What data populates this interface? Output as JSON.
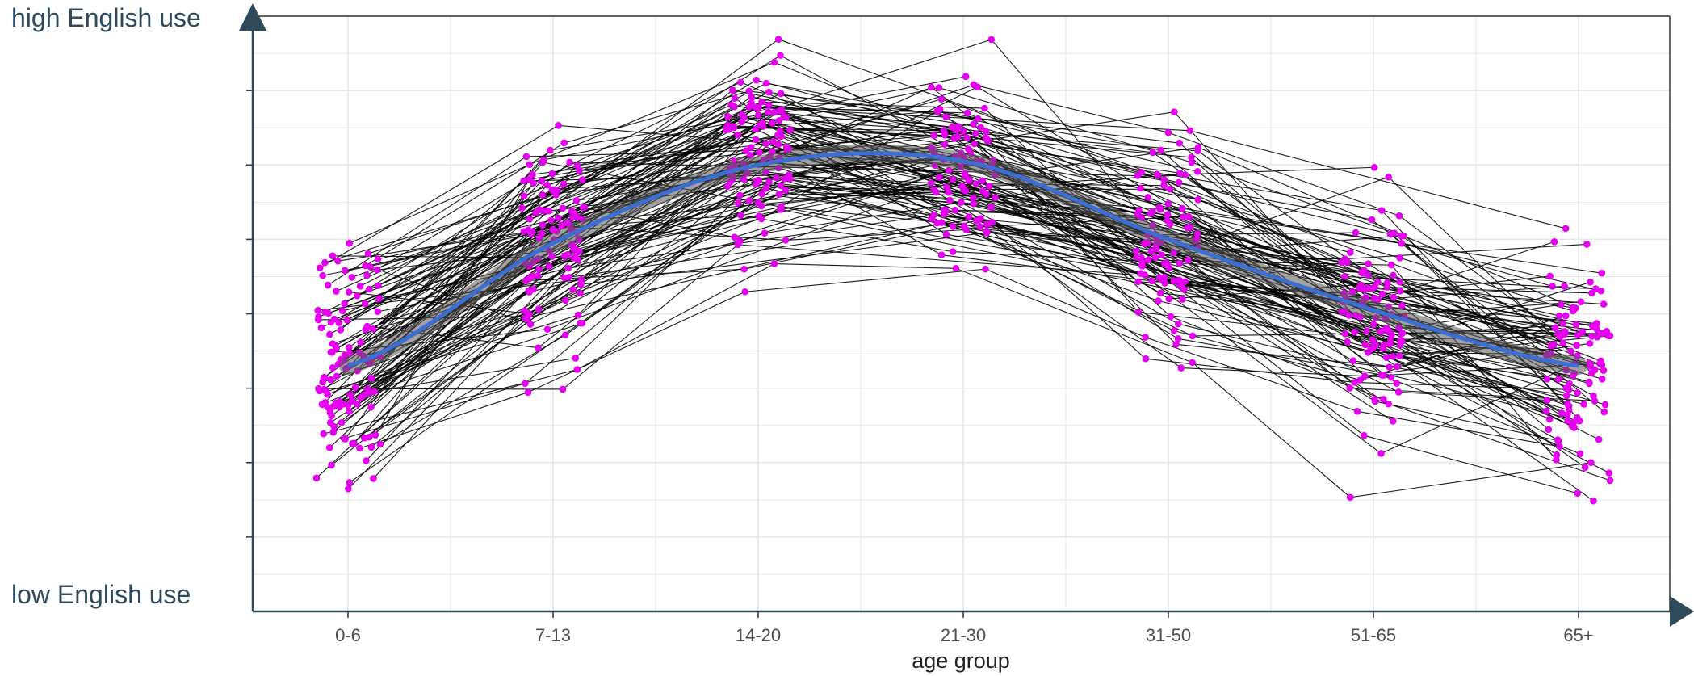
{
  "labels": {
    "high": "high English use",
    "low": "low English use"
  },
  "colors": {
    "point": "#e600f0",
    "line": "#000000",
    "smooth": "#3b6fd6",
    "ribbon": "#555555",
    "grid": "#e6e6e6",
    "axis": "#2e4a5b",
    "tick_text": "#4d4d4d"
  },
  "chart_data": {
    "type": "line",
    "xlabel": "age group",
    "ylabel": "",
    "categories": [
      "0-6",
      "7-13",
      "14-20",
      "21-30",
      "31-50",
      "51-65",
      "65+"
    ],
    "y_tick_labels_shown": false,
    "y_scale": "index (no numeric tick labels)",
    "ylim": [
      0,
      8
    ],
    "grid": true,
    "series": [
      {
        "role": "smooth trend (LOESS)",
        "values": [
          3.3,
          4.95,
          6.0,
          6.05,
          5.0,
          4.05,
          3.3
        ]
      }
    ],
    "individual_trajectories": {
      "description": "many individual participant lines connecting jittered points across age groups",
      "count_approx": 120,
      "category_means_approx": [
        3.3,
        5.0,
        6.2,
        6.0,
        5.0,
        4.0,
        3.3
      ],
      "category_spread_approx": [
        1.7,
        1.4,
        1.3,
        1.2,
        1.5,
        1.4,
        1.5
      ]
    }
  }
}
